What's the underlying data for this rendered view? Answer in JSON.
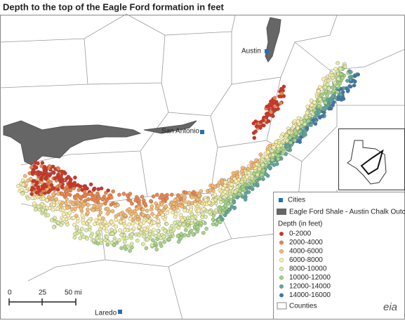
{
  "title": "Depth to the top of the Eagle Ford formation in feet",
  "cities": [
    "Austin",
    "San Antonio",
    "Laredo"
  ],
  "legend": {
    "cities": "Cities",
    "outcrop": "Eagle Ford Shale - Austin Chalk Outcrops",
    "depth_title": "Depth (in feet)",
    "classes": [
      {
        "label": "0-2000",
        "color": "#d7301f"
      },
      {
        "label": "2000-4000",
        "color": "#ee8446"
      },
      {
        "label": "4000-6000",
        "color": "#f7b86e"
      },
      {
        "label": "6000-8000",
        "color": "#fbefa8"
      },
      {
        "label": "8000-10000",
        "color": "#dcecA0"
      },
      {
        "label": "10000-12000",
        "color": "#a5d585"
      },
      {
        "label": "12000-14000",
        "color": "#5fa89a"
      },
      {
        "label": "14000-16000",
        "color": "#3b78ad"
      }
    ],
    "counties": "Counties"
  },
  "scale": [
    "0",
    "25",
    "50 mi"
  ],
  "logo": "eia"
}
